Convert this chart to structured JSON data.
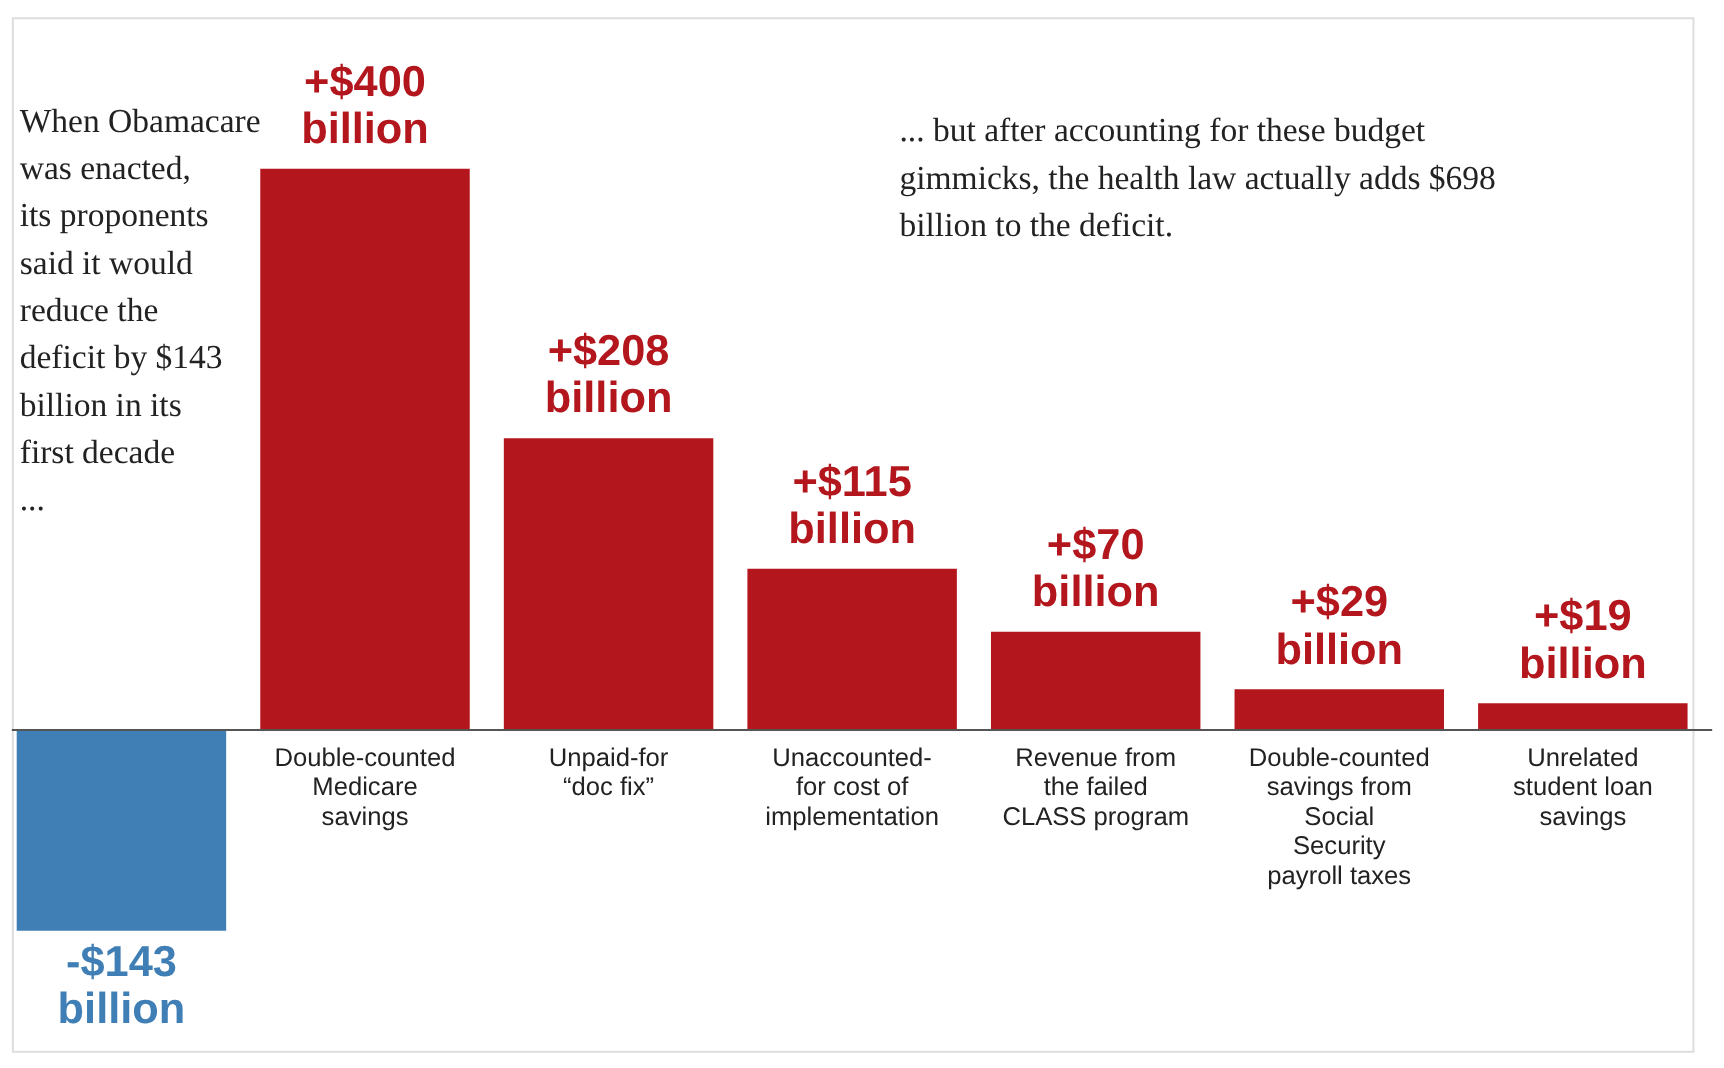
{
  "chart_data": {
    "type": "bar",
    "categories": [
      null,
      "Double-counted Medicare savings",
      "Unpaid-for “doc fix”",
      "Unaccounted-for cost of implementation",
      "Revenue from the failed CLASS program",
      "Double-counted savings from Social Security payroll taxes",
      "Unrelated student loan savings"
    ],
    "values": [
      -143,
      400,
      208,
      115,
      70,
      29,
      19
    ],
    "colors": [
      "#3f7fb5",
      "#b3171d",
      "#b3171d",
      "#b3171d",
      "#b3171d",
      "#b3171d",
      "#b3171d"
    ],
    "value_labels": [
      "-$143 billion",
      "+$400 billion",
      "+$208 billion",
      "+$115 billion",
      "+$70 billion",
      "+$29 billion",
      "+$19 billion"
    ],
    "annotations": [
      "When Obamacare was enacted, its proponents said it would reduce the deficit by $143 billion in its first decade ...",
      "... but after accounting for these budget gimmicks, the health law actually adds $698 billion to the deficit."
    ]
  }
}
